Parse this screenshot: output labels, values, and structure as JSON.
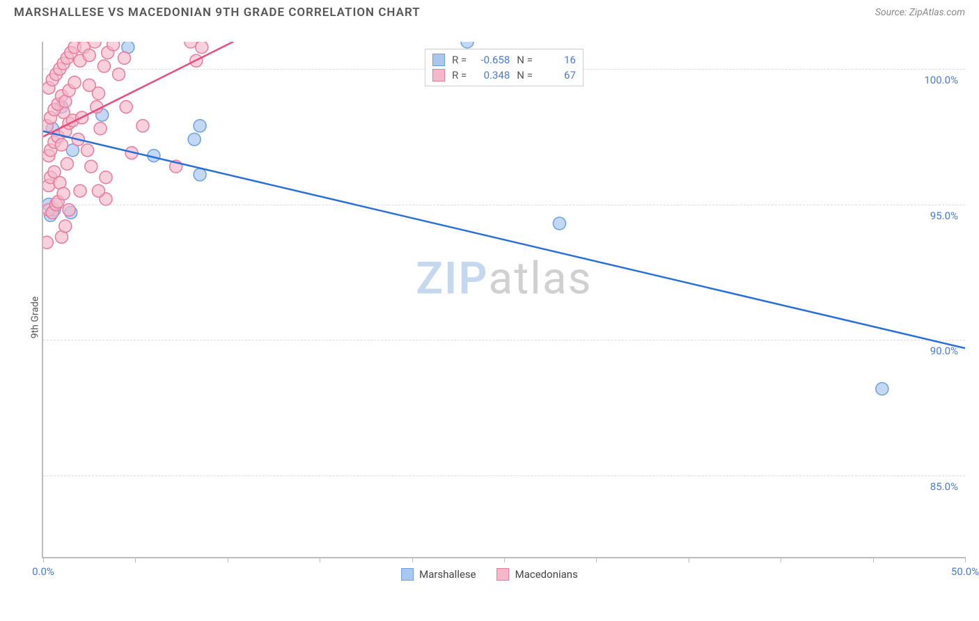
{
  "header": {
    "title": "MARSHALLESE VS MACEDONIAN 9TH GRADE CORRELATION CHART",
    "source_prefix": "Source: ",
    "source": "ZipAtlas.com"
  },
  "watermark": {
    "zip": "ZIP",
    "atlas": "atlas"
  },
  "chart": {
    "type": "scatter",
    "y_axis_label": "9th Grade",
    "background_color": "#ffffff",
    "grid_color": "#dddddd",
    "axis_color": "#bbbbbb",
    "tick_label_color": "#4a7bd0",
    "xlim": [
      0,
      50
    ],
    "ylim": [
      82,
      101
    ],
    "x_ticks": [
      0,
      5,
      10,
      15,
      20,
      25,
      30,
      35,
      40,
      45,
      50
    ],
    "x_tick_labels": {
      "0": "0.0%",
      "50": "50.0%"
    },
    "y_gridlines": [
      85,
      90,
      95,
      100
    ],
    "y_tick_labels": {
      "85": "85.0%",
      "90": "90.0%",
      "95": "95.0%",
      "100": "100.0%"
    },
    "marker_radius": 9,
    "marker_stroke_width": 1.5,
    "trend_line_width": 2.5,
    "series": {
      "marshallese": {
        "label": "Marshallese",
        "fill_color": "#a9c8ef",
        "stroke_color": "#6da0e0",
        "fill_opacity": 0.7,
        "R": "-0.658",
        "N": "16",
        "trend_color": "#2a6fd6",
        "trend": {
          "x1": 0,
          "y1": 97.7,
          "x2": 50,
          "y2": 89.7
        },
        "points": [
          [
            0.3,
            95.0
          ],
          [
            0.4,
            94.6
          ],
          [
            0.6,
            94.8
          ],
          [
            1.5,
            94.7
          ],
          [
            0.5,
            97.8
          ],
          [
            1.0,
            98.6
          ],
          [
            1.6,
            97.0
          ],
          [
            3.2,
            98.3
          ],
          [
            4.6,
            100.8
          ],
          [
            6.0,
            96.8
          ],
          [
            8.2,
            97.4
          ],
          [
            8.5,
            97.9
          ],
          [
            8.5,
            96.1
          ],
          [
            23.0,
            101.0
          ],
          [
            28.0,
            94.3
          ],
          [
            45.5,
            88.2
          ]
        ]
      },
      "macedonians": {
        "label": "Macedonians",
        "fill_color": "#f5b8c9",
        "stroke_color": "#e77a9d",
        "fill_opacity": 0.65,
        "R": "0.348",
        "N": "67",
        "trend_color": "#e94b80",
        "trend": {
          "x1": 0,
          "y1": 97.5,
          "x2": 10.3,
          "y2": 101
        },
        "points": [
          [
            0.2,
            93.6
          ],
          [
            0.3,
            94.8
          ],
          [
            0.5,
            94.7
          ],
          [
            0.7,
            95.0
          ],
          [
            0.8,
            95.1
          ],
          [
            0.3,
            95.7
          ],
          [
            0.4,
            96.0
          ],
          [
            0.6,
            96.2
          ],
          [
            0.9,
            95.8
          ],
          [
            1.1,
            95.4
          ],
          [
            1.3,
            96.5
          ],
          [
            0.3,
            96.8
          ],
          [
            0.4,
            97.0
          ],
          [
            0.6,
            97.3
          ],
          [
            0.8,
            97.5
          ],
          [
            1.0,
            97.2
          ],
          [
            1.1,
            98.4
          ],
          [
            1.2,
            97.7
          ],
          [
            1.4,
            98.0
          ],
          [
            0.2,
            97.9
          ],
          [
            0.4,
            98.2
          ],
          [
            0.6,
            98.5
          ],
          [
            0.8,
            98.7
          ],
          [
            1.0,
            99.0
          ],
          [
            1.2,
            98.8
          ],
          [
            1.4,
            99.2
          ],
          [
            1.6,
            98.1
          ],
          [
            1.7,
            99.5
          ],
          [
            0.3,
            99.3
          ],
          [
            0.5,
            99.6
          ],
          [
            0.7,
            99.8
          ],
          [
            0.9,
            100.0
          ],
          [
            1.1,
            100.2
          ],
          [
            1.3,
            100.4
          ],
          [
            1.5,
            100.6
          ],
          [
            1.7,
            100.8
          ],
          [
            2.0,
            100.3
          ],
          [
            2.2,
            100.8
          ],
          [
            2.5,
            99.4
          ],
          [
            2.5,
            100.5
          ],
          [
            2.8,
            101.0
          ],
          [
            3.0,
            99.1
          ],
          [
            3.3,
            100.1
          ],
          [
            3.5,
            100.6
          ],
          [
            3.8,
            100.9
          ],
          [
            4.1,
            99.8
          ],
          [
            4.4,
            100.4
          ],
          [
            1.9,
            97.4
          ],
          [
            2.1,
            98.2
          ],
          [
            2.4,
            97.0
          ],
          [
            2.6,
            96.4
          ],
          [
            2.9,
            98.6
          ],
          [
            3.1,
            97.8
          ],
          [
            3.4,
            96.0
          ],
          [
            3.4,
            95.2
          ],
          [
            1.0,
            93.8
          ],
          [
            1.2,
            94.2
          ],
          [
            1.4,
            94.8
          ],
          [
            2.0,
            95.5
          ],
          [
            4.5,
            98.6
          ],
          [
            4.8,
            96.9
          ],
          [
            5.4,
            97.9
          ],
          [
            7.2,
            96.4
          ],
          [
            8.0,
            101.0
          ],
          [
            8.3,
            100.3
          ],
          [
            8.6,
            100.8
          ],
          [
            3.0,
            95.5
          ]
        ]
      }
    }
  },
  "legend_top": {
    "R_label": "R =",
    "N_label": "N ="
  },
  "legend_bottom_order": [
    "marshallese",
    "macedonians"
  ]
}
